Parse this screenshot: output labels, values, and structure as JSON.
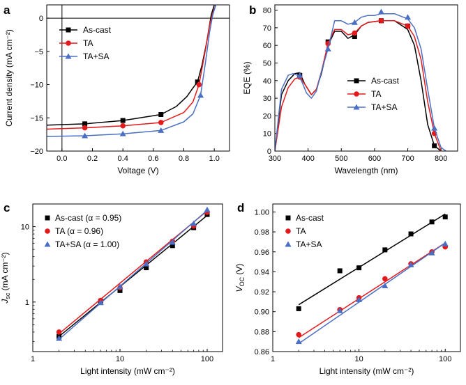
{
  "colors": {
    "as_cast": "#000000",
    "ta": "#e31a1c",
    "ta_sa": "#4a6fc3"
  },
  "chart_data": [
    {
      "id": "a",
      "panel_label": "a",
      "type": "line",
      "xlabel": "Voltage (V)",
      "ylabel": "Current density (mA cm⁻²)",
      "xlim": [
        -0.1,
        1.1
      ],
      "ylim": [
        -20,
        2
      ],
      "xticks": [
        0.0,
        0.2,
        0.4,
        0.6,
        0.8,
        1.0
      ],
      "xtick_labels": [
        "0.0",
        "0.2",
        "0.4",
        "0.6",
        "0.8",
        "1.0"
      ],
      "yticks": [
        0,
        -5,
        -10,
        -15,
        -20
      ],
      "ytick_labels": [
        "0",
        "−5",
        "−10",
        "−15",
        "−20"
      ],
      "zero_lines": true,
      "legend_position": "upper-left",
      "series": [
        {
          "name": "As-cast",
          "color": "#000000",
          "marker": "square",
          "x": [
            -0.1,
            0.15,
            0.4,
            0.65,
            0.75,
            0.82,
            0.86,
            0.89,
            0.92,
            0.95,
            0.98,
            1.0
          ],
          "y": [
            -16.1,
            -15.9,
            -15.4,
            -14.5,
            -13.3,
            -11.8,
            -10.5,
            -9.6,
            -7.0,
            -3.6,
            0.5,
            2.0
          ],
          "marker_x": [
            0.15,
            0.4,
            0.65,
            0.89
          ],
          "marker_y": [
            -15.9,
            -15.4,
            -14.5,
            -9.6
          ]
        },
        {
          "name": "TA",
          "color": "#e31a1c",
          "marker": "circle",
          "x": [
            -0.1,
            0.15,
            0.4,
            0.65,
            0.8,
            0.86,
            0.9,
            0.94,
            0.97,
            0.99,
            1.01
          ],
          "y": [
            -16.7,
            -16.5,
            -16.2,
            -15.7,
            -14.2,
            -12.6,
            -10.0,
            -5.0,
            -1.0,
            0.8,
            2.0
          ],
          "marker_x": [
            0.15,
            0.4,
            0.65,
            0.9
          ],
          "marker_y": [
            -16.5,
            -16.2,
            -15.7,
            -10.0
          ]
        },
        {
          "name": "TA+SA",
          "color": "#4a6fc3",
          "marker": "triangle",
          "x": [
            -0.1,
            0.15,
            0.4,
            0.65,
            0.8,
            0.86,
            0.91,
            0.94,
            0.97,
            0.99,
            1.01
          ],
          "y": [
            -17.8,
            -17.7,
            -17.4,
            -16.9,
            -15.6,
            -14.4,
            -11.6,
            -7.0,
            -2.0,
            0.5,
            2.0
          ],
          "marker_x": [
            0.15,
            0.4,
            0.65,
            0.91
          ],
          "marker_y": [
            -17.7,
            -17.4,
            -16.9,
            -11.6
          ]
        }
      ]
    },
    {
      "id": "b",
      "panel_label": "b",
      "type": "line",
      "xlabel": "Wavelength (nm)",
      "ylabel": "EQE (%)",
      "xlim": [
        300,
        850
      ],
      "ylim": [
        0,
        83
      ],
      "xticks": [
        300,
        400,
        500,
        600,
        700,
        800
      ],
      "xtick_labels": [
        "300",
        "400",
        "500",
        "600",
        "700",
        "800"
      ],
      "yticks": [
        0,
        10,
        20,
        30,
        40,
        50,
        60,
        70,
        80
      ],
      "ytick_labels": [
        "0",
        "10",
        "20",
        "30",
        "40",
        "50",
        "60",
        "70",
        "80"
      ],
      "legend_position": "center-right",
      "series": [
        {
          "name": "As-cast",
          "color": "#000000",
          "marker": "square",
          "x": [
            300,
            320,
            340,
            360,
            375,
            390,
            410,
            425,
            440,
            460,
            480,
            500,
            520,
            540,
            560,
            580,
            620,
            660,
            700,
            720,
            740,
            760,
            780,
            800
          ],
          "y": [
            0,
            32,
            40,
            44,
            44.5,
            38,
            32,
            35,
            44,
            60,
            68,
            68,
            64,
            66,
            71,
            73,
            74,
            74,
            69,
            60,
            40,
            15,
            3,
            0
          ],
          "marker_x": [
            375,
            460,
            540,
            620,
            700,
            780
          ],
          "marker_y": [
            43,
            62,
            65,
            74,
            71,
            3
          ]
        },
        {
          "name": "TA",
          "color": "#e31a1c",
          "marker": "circle",
          "x": [
            300,
            320,
            340,
            360,
            375,
            390,
            410,
            425,
            440,
            460,
            480,
            500,
            520,
            540,
            560,
            580,
            620,
            660,
            700,
            720,
            740,
            760,
            780,
            800
          ],
          "y": [
            0,
            25,
            36,
            41,
            42,
            38,
            32,
            35,
            45,
            61,
            69,
            69,
            66,
            67,
            71,
            73,
            74,
            74,
            71,
            65,
            52,
            28,
            10,
            0
          ],
          "marker_x": [
            375,
            460,
            540,
            620,
            700,
            780
          ],
          "marker_y": [
            42,
            61,
            67,
            74,
            71,
            10
          ]
        },
        {
          "name": "TA+SA",
          "color": "#4a6fc3",
          "marker": "triangle",
          "x": [
            300,
            320,
            340,
            355,
            368,
            380,
            395,
            410,
            425,
            440,
            460,
            480,
            500,
            520,
            540,
            560,
            580,
            600,
            620,
            660,
            700,
            720,
            740,
            760,
            780,
            800,
            815
          ],
          "y": [
            0,
            35,
            43,
            44,
            43,
            40,
            33,
            30,
            34,
            45,
            58,
            74,
            74,
            72,
            73,
            76,
            77,
            77,
            78,
            78,
            75,
            70,
            58,
            35,
            13,
            2,
            0
          ],
          "marker_x": [
            375,
            460,
            540,
            620,
            700,
            780
          ],
          "marker_y": [
            43,
            58,
            73,
            79,
            76,
            13
          ]
        }
      ]
    },
    {
      "id": "c",
      "panel_label": "c",
      "type": "scatter",
      "xscale": "log",
      "yscale": "log",
      "xlabel": "Light intensity (mW cm⁻²)",
      "ylabel_main": "J",
      "ylabel_sub": "sc",
      "ylabel_unit": " (mA cm⁻²)",
      "xlim": [
        1,
        150
      ],
      "ylim": [
        0.22,
        20
      ],
      "xticks": [
        1,
        10,
        100
      ],
      "xtick_labels": [
        "1",
        "10",
        "100"
      ],
      "yticks": [
        1,
        10
      ],
      "ytick_labels": [
        "1",
        "10"
      ],
      "legend_position": "upper-left",
      "series": [
        {
          "name": "As-cast (α = 0.95)",
          "color": "#000000",
          "marker": "square",
          "x": [
            2,
            6,
            10,
            20,
            40,
            70,
            100
          ],
          "y": [
            0.35,
            1.03,
            1.42,
            2.85,
            5.6,
            9.7,
            14.5
          ],
          "fit_x": [
            2,
            100
          ],
          "fit_y": [
            0.35,
            14.1
          ]
        },
        {
          "name": "TA (α = 0.96)",
          "color": "#e31a1c",
          "marker": "circle",
          "x": [
            2,
            6,
            10,
            20,
            40,
            70,
            100
          ],
          "y": [
            0.4,
            1.05,
            1.55,
            3.4,
            6.4,
            10.2,
            15.5
          ],
          "fit_x": [
            2,
            100
          ],
          "fit_y": [
            0.38,
            16.2
          ]
        },
        {
          "name": "TA+SA (α = 1.00)",
          "color": "#4a6fc3",
          "marker": "triangle",
          "x": [
            2,
            6,
            10,
            20,
            40,
            70,
            100
          ],
          "y": [
            0.33,
            0.98,
            1.6,
            3.2,
            6.2,
            11.0,
            16.8
          ],
          "fit_x": [
            2,
            100
          ],
          "fit_y": [
            0.32,
            16.5
          ]
        }
      ]
    },
    {
      "id": "d",
      "panel_label": "d",
      "type": "scatter",
      "xscale": "log",
      "xlabel": "Light intensity (mW cm⁻²)",
      "ylabel_main": "V",
      "ylabel_sub": "OC",
      "ylabel_unit": " (V)",
      "xlim": [
        1,
        150
      ],
      "ylim": [
        0.86,
        1.008
      ],
      "xticks": [
        1,
        10,
        100
      ],
      "xtick_labels": [
        "1",
        "10",
        "100"
      ],
      "yticks": [
        0.86,
        0.88,
        0.9,
        0.92,
        0.94,
        0.96,
        0.98,
        1.0
      ],
      "ytick_labels": [
        "0.86",
        "0.88",
        "0.90",
        "0.92",
        "0.94",
        "0.96",
        "0.98",
        "1.00"
      ],
      "legend_position": "upper-left",
      "series": [
        {
          "name": "As-cast",
          "color": "#000000",
          "marker": "square",
          "x": [
            2,
            6,
            10,
            20,
            40,
            70,
            100
          ],
          "y": [
            0.903,
            0.941,
            0.944,
            0.962,
            0.978,
            0.99,
            0.995
          ],
          "fit_x": [
            2,
            100
          ],
          "fit_y": [
            0.907,
            0.998
          ]
        },
        {
          "name": "TA",
          "color": "#e31a1c",
          "marker": "circle",
          "x": [
            2,
            6,
            10,
            20,
            40,
            70,
            100
          ],
          "y": [
            0.877,
            0.902,
            0.914,
            0.933,
            0.948,
            0.96,
            0.965
          ],
          "fit_x": [
            2,
            100
          ],
          "fit_y": [
            0.874,
            0.969
          ]
        },
        {
          "name": "TA+SA",
          "color": "#4a6fc3",
          "marker": "triangle",
          "x": [
            2,
            6,
            10,
            20,
            40,
            70,
            100
          ],
          "y": [
            0.87,
            0.901,
            0.912,
            0.926,
            0.947,
            0.959,
            0.968
          ],
          "fit_x": [
            2,
            100
          ],
          "fit_y": [
            0.868,
            0.969
          ]
        }
      ]
    }
  ]
}
